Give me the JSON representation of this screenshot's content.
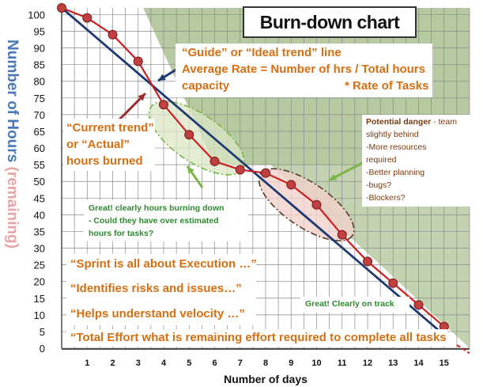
{
  "chart_data": {
    "type": "line",
    "title": "Burn-down chart",
    "xlabel": "Number of days",
    "ylabel": "Number of Hours",
    "ylabel_suffix": "(remaining)",
    "x_ticks": [
      1,
      2,
      3,
      4,
      5,
      6,
      7,
      8,
      9,
      10,
      11,
      12,
      13,
      14,
      15
    ],
    "y_ticks": [
      0,
      5,
      10,
      15,
      20,
      25,
      30,
      35,
      40,
      45,
      50,
      55,
      60,
      65,
      70,
      75,
      80,
      85,
      90,
      95,
      100
    ],
    "xlim": [
      0,
      16
    ],
    "ylim": [
      0,
      102
    ],
    "grid": true,
    "series": [
      {
        "kind": "ideal",
        "x": [
          0,
          15
        ],
        "y": [
          102,
          4
        ],
        "color": "#1f3a73"
      },
      {
        "kind": "actual",
        "x": [
          0,
          1,
          2,
          3,
          4,
          5,
          6,
          7,
          8,
          9,
          10,
          11,
          12,
          13,
          14,
          15
        ],
        "y": [
          102,
          99,
          94,
          86,
          73,
          64,
          56,
          53.5,
          52.5,
          49,
          43,
          34,
          26,
          19.5,
          13,
          6.5
        ],
        "color": "#cc1f1f",
        "marker_color": "#c04040"
      }
    ]
  },
  "annotations": {
    "guide_line1": "“Guide” or “Ideal trend”  line",
    "guide_line2": "Average Rate = Number of hrs / Total hours",
    "guide_line3": "capacity",
    "guide_line4": "* Rate of Tasks",
    "current1": "“Current trend”",
    "current2": "or “Actual”",
    "current3": "hours burned",
    "danger_title": "Potential danger",
    "danger_rest": " - team",
    "danger2": "slightly behind",
    "danger3": "-More resources",
    "danger4": "required",
    "danger5": "-Better planning",
    "danger6": "-bugs?",
    "danger7": "-Blockers?",
    "great1": "Great! clearly hours burning down",
    "great2": "- Could they have over estimated",
    "great3": "hours for tasks?",
    "sprint": "“Sprint is all about Execution …”",
    "risks": "“Identifies risks and issues…”",
    "velocity": "“Helps understand velocity …”",
    "total": "“Total Effort what is remaining effort required to complete all tasks",
    "on_track": "Great!  Clearly on track"
  },
  "colors": {
    "shade": "#a9bf8f",
    "orange_text": "#d86e12",
    "green_text": "#2b8a2b",
    "blue_axis_label": "#4b79b6",
    "pink_axis_label": "#e8a3a3"
  }
}
